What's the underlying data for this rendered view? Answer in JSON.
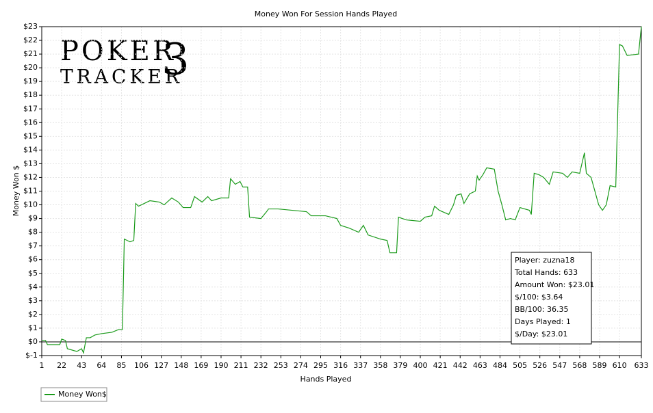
{
  "chart_data": {
    "type": "line",
    "title": "Money Won For Session Hands Played",
    "x_label": "Hands Played",
    "y_label": "Money Won $",
    "watermark": [
      "POKER",
      "TRACKER",
      "3"
    ],
    "x": [
      1,
      5,
      7,
      20,
      22,
      26,
      28,
      38,
      43,
      45,
      48,
      52,
      57,
      64,
      75,
      82,
      86,
      88,
      94,
      98,
      100,
      103,
      115,
      125,
      130,
      138,
      145,
      150,
      158,
      162,
      170,
      176,
      180,
      190,
      198,
      200,
      205,
      210,
      213,
      218,
      220,
      232,
      238,
      240,
      250,
      265,
      280,
      285,
      300,
      312,
      316,
      325,
      335,
      340,
      345,
      358,
      365,
      368,
      375,
      377,
      385,
      400,
      405,
      412,
      415,
      420,
      430,
      435,
      438,
      443,
      446,
      452,
      458,
      460,
      462,
      466,
      470,
      478,
      482,
      486,
      490,
      495,
      500,
      505,
      515,
      517,
      520,
      525,
      530,
      536,
      540,
      550,
      555,
      560,
      568,
      573,
      575,
      580,
      588,
      592,
      596,
      600,
      606,
      610,
      613,
      618,
      630,
      633
    ],
    "series": [
      {
        "name": "Money Won$",
        "color": "#1a9a1a",
        "values": [
          0.1,
          0.1,
          -0.2,
          -0.2,
          0.2,
          0.1,
          -0.5,
          -0.7,
          -0.5,
          -0.8,
          0.3,
          0.3,
          0.5,
          0.6,
          0.7,
          0.9,
          0.9,
          7.5,
          7.3,
          7.4,
          10.1,
          9.9,
          10.3,
          10.2,
          10.0,
          10.5,
          10.2,
          9.8,
          9.8,
          10.6,
          10.2,
          10.6,
          10.3,
          10.5,
          10.5,
          11.9,
          11.5,
          11.7,
          11.3,
          11.3,
          9.1,
          9.0,
          9.5,
          9.7,
          9.7,
          9.6,
          9.5,
          9.2,
          9.2,
          9.0,
          8.5,
          8.3,
          8.0,
          8.5,
          7.8,
          7.5,
          7.4,
          6.5,
          6.5,
          9.1,
          8.9,
          8.8,
          9.1,
          9.2,
          9.9,
          9.6,
          9.3,
          10.0,
          10.7,
          10.8,
          10.1,
          10.8,
          11.0,
          12.1,
          11.8,
          12.2,
          12.7,
          12.6,
          11.0,
          10.0,
          8.9,
          9.0,
          8.9,
          9.8,
          9.6,
          9.3,
          12.3,
          12.2,
          12.0,
          11.5,
          12.4,
          12.3,
          12.0,
          12.4,
          12.3,
          13.8,
          12.3,
          12.0,
          10.0,
          9.6,
          10.0,
          11.4,
          11.3,
          21.7,
          21.6,
          20.9,
          21.0,
          23.01
        ]
      }
    ],
    "xlim": [
      1,
      633
    ],
    "xticks": [
      1,
      22,
      43,
      64,
      85,
      106,
      127,
      148,
      169,
      190,
      211,
      232,
      253,
      274,
      295,
      316,
      337,
      358,
      379,
      400,
      421,
      442,
      463,
      484,
      505,
      526,
      547,
      568,
      589,
      610,
      633
    ],
    "ylim": [
      -1,
      23
    ],
    "yticks": [
      {
        "value": -1,
        "label": "$-1"
      },
      {
        "value": 0,
        "label": "$0"
      },
      {
        "value": 1,
        "label": "$1"
      },
      {
        "value": 2,
        "label": "$2"
      },
      {
        "value": 3,
        "label": "$3"
      },
      {
        "value": 4,
        "label": "$4"
      },
      {
        "value": 5,
        "label": "$5"
      },
      {
        "value": 6,
        "label": "$6"
      },
      {
        "value": 7,
        "label": "$7"
      },
      {
        "value": 8,
        "label": "$8"
      },
      {
        "value": 9,
        "label": "$9"
      },
      {
        "value": 10,
        "label": "$10"
      },
      {
        "value": 11,
        "label": "$11"
      },
      {
        "value": 12,
        "label": "$12"
      },
      {
        "value": 13,
        "label": "$13"
      },
      {
        "value": 14,
        "label": "$14"
      },
      {
        "value": 15,
        "label": "$15"
      },
      {
        "value": 16,
        "label": "$16"
      },
      {
        "value": 17,
        "label": "$17"
      },
      {
        "value": 18,
        "label": "$18"
      },
      {
        "value": 19,
        "label": "$19"
      },
      {
        "value": 20,
        "label": "$20"
      },
      {
        "value": 21,
        "label": "$21"
      },
      {
        "value": 22,
        "label": "$22"
      },
      {
        "value": 23,
        "label": "$23"
      }
    ],
    "grid": true,
    "legend": "bottom-left",
    "annotations": [
      "Player: zuzna18",
      "Total Hands: 633",
      "Amount Won: $23.01",
      "$/100: $3.64",
      "BB/100: 36.35",
      "Days Played: 1",
      "$/Day: $23.01"
    ]
  }
}
